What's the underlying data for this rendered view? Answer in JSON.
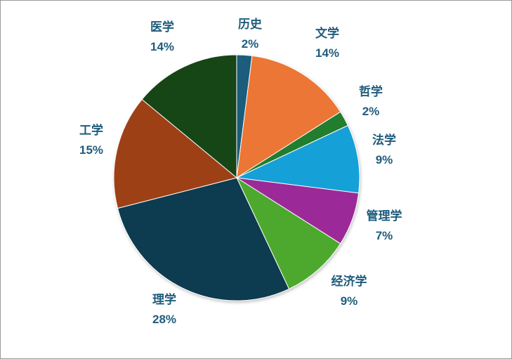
{
  "chart_data": {
    "type": "pie",
    "title": "",
    "legend": "none",
    "slices": [
      {
        "label": "历史",
        "value": 2,
        "display": "2%",
        "color": "#1f5c7c"
      },
      {
        "label": "文学",
        "value": 14,
        "display": "14%",
        "color": "#ec7634"
      },
      {
        "label": "哲学",
        "value": 2,
        "display": "2%",
        "color": "#237d2d"
      },
      {
        "label": "法学",
        "value": 9,
        "display": "9%",
        "color": "#16a0d8"
      },
      {
        "label": "管理学",
        "value": 7,
        "display": "7%",
        "color": "#9b2c98"
      },
      {
        "label": "经济学",
        "value": 9,
        "display": "9%",
        "color": "#4ea92f"
      },
      {
        "label": "理学",
        "value": 28,
        "display": "28%",
        "color": "#103a4f"
      },
      {
        "label": "工学",
        "value": 15,
        "display": "15%",
        "color": "#9d4012"
      },
      {
        "label": "医学",
        "value": 14,
        "display": "14%",
        "color": "#134519"
      }
    ],
    "label_color": "#1f5c7c"
  }
}
